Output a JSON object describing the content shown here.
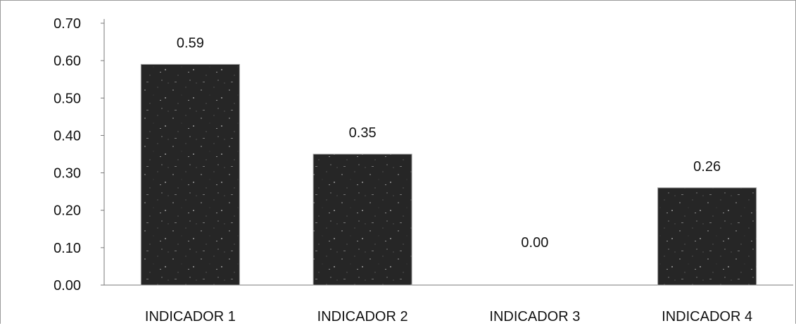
{
  "chart_data": {
    "type": "bar",
    "categories": [
      "INDICADOR 1",
      "INDICADOR 2",
      "INDICADOR 3",
      "INDICADOR 4"
    ],
    "values": [
      0.59,
      0.35,
      0.0,
      0.26
    ],
    "data_labels": [
      "0.59",
      "0.35",
      "0.00",
      "0.26"
    ],
    "y_ticks": [
      "0.00",
      "0.10",
      "0.20",
      "0.30",
      "0.40",
      "0.50",
      "0.60",
      "0.70"
    ],
    "ylim": [
      0,
      0.7
    ],
    "grid": false,
    "legend": "none",
    "bar_color": "#2b2b2b"
  }
}
